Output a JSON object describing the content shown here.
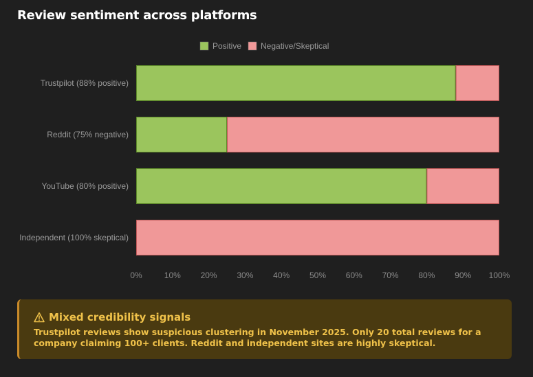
{
  "title": "Review sentiment across platforms",
  "chart_data": {
    "type": "bar",
    "orientation": "horizontal",
    "stacked": true,
    "categories": [
      "Trustpilot (88% positive)",
      "Reddit (75% negative)",
      "YouTube (80% positive)",
      "Independent (100% skeptical)"
    ],
    "series": [
      {
        "name": "Positive",
        "values": [
          88,
          25,
          80,
          0
        ],
        "color": "#9bc55d"
      },
      {
        "name": "Negative/Skeptical",
        "values": [
          12,
          75,
          20,
          100
        ],
        "color": "#f09898"
      }
    ],
    "xticks": [
      "0%",
      "10%",
      "20%",
      "30%",
      "40%",
      "50%",
      "60%",
      "70%",
      "80%",
      "90%",
      "100%"
    ],
    "xlim": [
      0,
      100
    ],
    "grid": false,
    "legend": "top"
  },
  "callout": {
    "icon": "warning-icon",
    "title": "Mixed credibility signals",
    "body": "Trustpilot reviews show suspicious clustering in November 2025. Only 20 total reviews for a company claiming 100+ clients. Reddit and independent sites are highly skeptical."
  }
}
